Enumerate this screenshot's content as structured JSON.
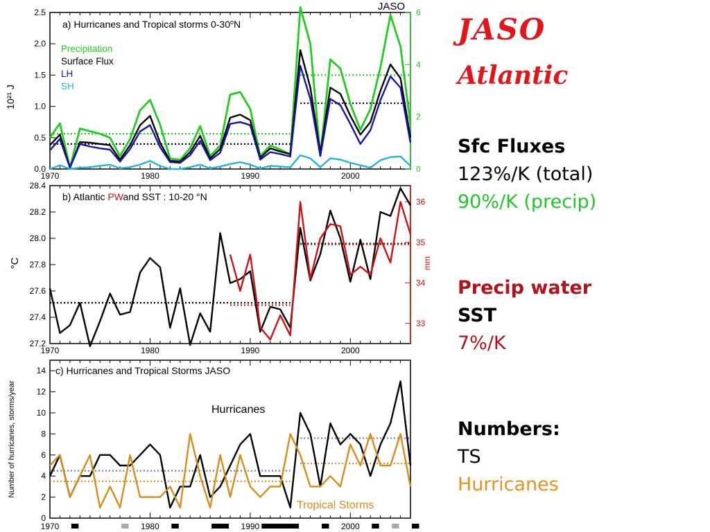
{
  "colors": {
    "precip": "#22cc22",
    "surface": "#000000",
    "lh": "#1515a8",
    "sh": "#22b4dc",
    "pw": "#c81414",
    "tropical": "#d98c1a",
    "grid_dot_grey": "#808080",
    "title_red": "#e0161b"
  },
  "sidebar": {
    "title": "JASO",
    "subtitle": "Atlantic",
    "fluxes_heading": "Sfc Fluxes",
    "fluxes_total": "123%/K  (total)",
    "fluxes_precip": "90%/K (precip)",
    "pw_heading": "Precip water",
    "sst_heading": "SST",
    "pw_rate": "7%/K",
    "numbers_heading": "Numbers:",
    "numbers_ts": "TS",
    "numbers_hurr": "Hurricanes"
  },
  "chart_data": [
    {
      "type": "line",
      "corner_label": "JASO",
      "panel_title_prefix": "a)  Hurricanes and Tropical storms 0-30",
      "panel_title_suffix": "N",
      "ylabel": "10²¹ J",
      "xlim": [
        1970,
        2006
      ],
      "ylim": [
        0,
        2.5
      ],
      "yticks": [
        "0.0",
        "0.5",
        "1.0",
        "1.5",
        "2.0",
        "2.5"
      ],
      "y2lim": [
        0,
        6
      ],
      "y2ticks": [
        "0",
        "2",
        "4",
        "6"
      ],
      "xticks": [
        "1970",
        "1980",
        "1990",
        "2000"
      ],
      "x": [
        1970,
        1971,
        1972,
        1973,
        1974,
        1975,
        1976,
        1977,
        1978,
        1979,
        1980,
        1981,
        1982,
        1983,
        1984,
        1985,
        1986,
        1987,
        1988,
        1989,
        1990,
        1991,
        1992,
        1993,
        1994,
        1995,
        1996,
        1997,
        1998,
        1999,
        2000,
        2001,
        2002,
        2003,
        2004,
        2005,
        2006
      ],
      "legend": [
        {
          "name": "Precipitation",
          "color_key": "precip"
        },
        {
          "name": "Surface Flux",
          "color_key": "surface"
        },
        {
          "name": "LH",
          "color_key": "lh"
        },
        {
          "name": "SH",
          "color_key": "sh"
        }
      ],
      "series": [
        {
          "name": "Precipitation",
          "axis": "right",
          "color_key": "precip",
          "values": [
            1.2,
            1.75,
            0.05,
            1.55,
            1.45,
            1.35,
            1.2,
            0.5,
            1.15,
            2.25,
            2.65,
            1.7,
            0.4,
            0.35,
            0.8,
            1.65,
            0.5,
            0.9,
            2.85,
            2.95,
            2.3,
            0.5,
            0.9,
            0.75,
            0.55,
            6.2,
            4.8,
            0.5,
            4.2,
            3.85,
            2.5,
            1.5,
            2.3,
            3.9,
            5.9,
            4.7,
            1.7
          ]
        },
        {
          "name": "Surface Flux",
          "axis": "left",
          "color_key": "surface",
          "values": [
            0.38,
            0.55,
            0.02,
            0.43,
            0.42,
            0.4,
            0.38,
            0.15,
            0.38,
            0.7,
            0.85,
            0.42,
            0.13,
            0.12,
            0.27,
            0.53,
            0.17,
            0.32,
            0.82,
            0.87,
            0.78,
            0.18,
            0.33,
            0.28,
            0.24,
            1.9,
            1.3,
            0.25,
            1.3,
            1.2,
            0.85,
            0.55,
            0.75,
            1.25,
            1.67,
            1.45,
            0.5
          ]
        },
        {
          "name": "LH",
          "axis": "left",
          "color_key": "lh",
          "values": [
            0.3,
            0.48,
            0.02,
            0.4,
            0.36,
            0.33,
            0.31,
            0.12,
            0.32,
            0.6,
            0.7,
            0.35,
            0.11,
            0.1,
            0.22,
            0.45,
            0.14,
            0.26,
            0.72,
            0.75,
            0.7,
            0.15,
            0.27,
            0.24,
            0.2,
            1.65,
            1.12,
            0.21,
            1.12,
            1.02,
            0.72,
            0.4,
            0.62,
            1.1,
            1.48,
            1.3,
            0.42
          ]
        },
        {
          "name": "SH",
          "axis": "left",
          "color_key": "sh",
          "values": [
            0.0,
            0.06,
            0.0,
            0.02,
            0.03,
            0.05,
            0.07,
            0.01,
            0.03,
            0.07,
            0.13,
            0.05,
            0.0,
            0.0,
            0.03,
            0.07,
            0.01,
            0.04,
            0.08,
            0.11,
            0.07,
            0.01,
            0.05,
            0.04,
            0.03,
            0.22,
            0.17,
            0.03,
            0.17,
            0.15,
            0.1,
            0.06,
            0.02,
            0.14,
            0.19,
            0.2,
            0.05
          ]
        }
      ],
      "reference_lines": [
        {
          "color_key": "precip",
          "axis": "right",
          "y": 1.35,
          "x": [
            1970,
            1994
          ]
        },
        {
          "color_key": "surface",
          "axis": "left",
          "y": 0.4,
          "x": [
            1970,
            1994
          ]
        },
        {
          "color_key": "precip",
          "axis": "right",
          "y": 3.6,
          "x": [
            1995,
            2006
          ]
        },
        {
          "color_key": "surface",
          "axis": "left",
          "y": 1.05,
          "x": [
            1995,
            2006
          ]
        }
      ]
    },
    {
      "type": "line",
      "panel_title_prefix": "b) Atlantic ",
      "panel_title_pw": "PW",
      "panel_title_suffix": "and SST :  10-20 °N",
      "ylabel": "°C",
      "y2label": "mm",
      "xlim": [
        1970,
        2006
      ],
      "ylim": [
        27.2,
        28.4
      ],
      "yticks": [
        "27.2",
        "27.4",
        "27.6",
        "27.8",
        "28.0",
        "28.2",
        "28.4"
      ],
      "y2lim": [
        32.5,
        36.4
      ],
      "y2ticks": [
        "33",
        "34",
        "35",
        "36"
      ],
      "xticks": [
        "1970",
        "1980",
        "1990",
        "2000"
      ],
      "series": [
        {
          "name": "SST",
          "axis": "left",
          "color_key": "surface",
          "x": [
            1970,
            1971,
            1972,
            1973,
            1974,
            1975,
            1976,
            1977,
            1978,
            1979,
            1980,
            1981,
            1982,
            1983,
            1984,
            1985,
            1986,
            1987,
            1988,
            1989,
            1990,
            1991,
            1992,
            1993,
            1994,
            1995,
            1996,
            1997,
            1998,
            1999,
            2000,
            2001,
            2002,
            2003,
            2004,
            2005,
            2006
          ],
          "values": [
            27.62,
            27.28,
            27.34,
            27.51,
            27.18,
            27.37,
            27.58,
            27.42,
            27.44,
            27.74,
            27.85,
            27.78,
            27.32,
            27.62,
            27.19,
            27.43,
            27.29,
            28.04,
            27.66,
            27.69,
            27.75,
            27.29,
            27.48,
            27.46,
            27.32,
            28.08,
            27.68,
            27.88,
            28.21,
            28.0,
            27.67,
            27.99,
            27.69,
            28.2,
            28.17,
            28.38,
            28.25
          ]
        },
        {
          "name": "PW",
          "axis": "right",
          "color_key": "pw",
          "x": [
            1988,
            1989,
            1990,
            1991,
            1992,
            1993,
            1994,
            1995,
            1996,
            1997,
            1998,
            1999,
            2000,
            2001,
            2002,
            2003,
            2004,
            2005,
            2006
          ],
          "values": [
            34.7,
            33.8,
            34.7,
            32.9,
            32.6,
            33.2,
            32.7,
            36.0,
            34.1,
            35.1,
            35.45,
            35.4,
            34.2,
            34.4,
            34.2,
            35.1,
            34.5,
            36.0,
            35.2
          ]
        }
      ],
      "reference_lines": [
        {
          "color_key": "surface",
          "axis": "left",
          "y": 27.51,
          "x": [
            1970,
            1994
          ]
        },
        {
          "color_key": "pw",
          "axis": "right",
          "y": 33.45,
          "x": [
            1988,
            1994
          ]
        },
        {
          "color_key": "surface",
          "axis": "left",
          "y": 27.96,
          "x": [
            1995,
            2006
          ]
        },
        {
          "color_key": "pw",
          "axis": "right",
          "y": 34.95,
          "x": [
            1995,
            2006
          ]
        }
      ]
    },
    {
      "type": "line",
      "panel_title": "c) Hurricanes and Tropical Storms  JASO",
      "ylabel": "Number of hurricanes, storms/year",
      "xlim": [
        1970,
        2006
      ],
      "ylim": [
        0,
        15
      ],
      "yticks": [
        "0",
        "2",
        "4",
        "6",
        "8",
        "10",
        "12",
        "14"
      ],
      "xticks": [
        "1970",
        "1980",
        "1990",
        "2000"
      ],
      "x": [
        1970,
        1971,
        1972,
        1973,
        1974,
        1975,
        1976,
        1977,
        1978,
        1979,
        1980,
        1981,
        1982,
        1983,
        1984,
        1985,
        1986,
        1987,
        1988,
        1989,
        1990,
        1991,
        1992,
        1993,
        1994,
        1995,
        1996,
        1997,
        1998,
        1999,
        2000,
        2001,
        2002,
        2003,
        2004,
        2005,
        2006
      ],
      "annotations": [
        {
          "text": "Hurricanes",
          "color_key": "surface"
        },
        {
          "text": "Tropical Storms",
          "color_key": "tropical"
        }
      ],
      "series": [
        {
          "name": "Hurricanes",
          "color_key": "surface",
          "values": [
            4,
            6,
            2,
            4,
            4,
            6,
            6,
            5,
            5,
            6,
            7,
            6,
            1,
            3,
            3,
            6,
            2,
            3,
            5,
            7,
            8,
            4,
            4,
            4,
            1,
            10,
            8,
            3,
            9,
            7,
            8,
            7,
            4,
            7,
            9,
            13,
            5
          ]
        },
        {
          "name": "Tropical Storms",
          "color_key": "tropical",
          "values": [
            5,
            6,
            2,
            4,
            6,
            1,
            3,
            1,
            6,
            2,
            2,
            2,
            3,
            1,
            8,
            4,
            1,
            6,
            2,
            6,
            3,
            2,
            3,
            3,
            8,
            6,
            3,
            3,
            4,
            3,
            7,
            5,
            8,
            5,
            5,
            8,
            3
          ]
        }
      ],
      "reference_lines": [
        {
          "color_key": "grid_dot_grey",
          "y": 4.5,
          "x": [
            1970,
            1994
          ]
        },
        {
          "color_key": "tropical",
          "y": 3.5,
          "x": [
            1970,
            1994
          ]
        },
        {
          "color_key": "grid_dot_grey",
          "y": 7.6,
          "x": [
            1995,
            2006
          ]
        },
        {
          "color_key": "tropical",
          "y": 5.2,
          "x": [
            1995,
            2006
          ]
        }
      ],
      "enso_bars": [
        {
          "start": 1972,
          "end": 1973,
          "kind": "warm"
        },
        {
          "start": 1977,
          "end": 1978,
          "kind": "neutral"
        },
        {
          "start": 1982,
          "end": 1983,
          "kind": "warm"
        },
        {
          "start": 1986,
          "end": 1988,
          "kind": "warm"
        },
        {
          "start": 1991,
          "end": 1995,
          "kind": "warm"
        },
        {
          "start": 1997,
          "end": 1998,
          "kind": "warm"
        },
        {
          "start": 2002,
          "end": 2003,
          "kind": "warm"
        },
        {
          "start": 2004,
          "end": 2005,
          "kind": "neutral"
        },
        {
          "start": 2006,
          "end": 2007,
          "kind": "warm"
        }
      ]
    }
  ]
}
